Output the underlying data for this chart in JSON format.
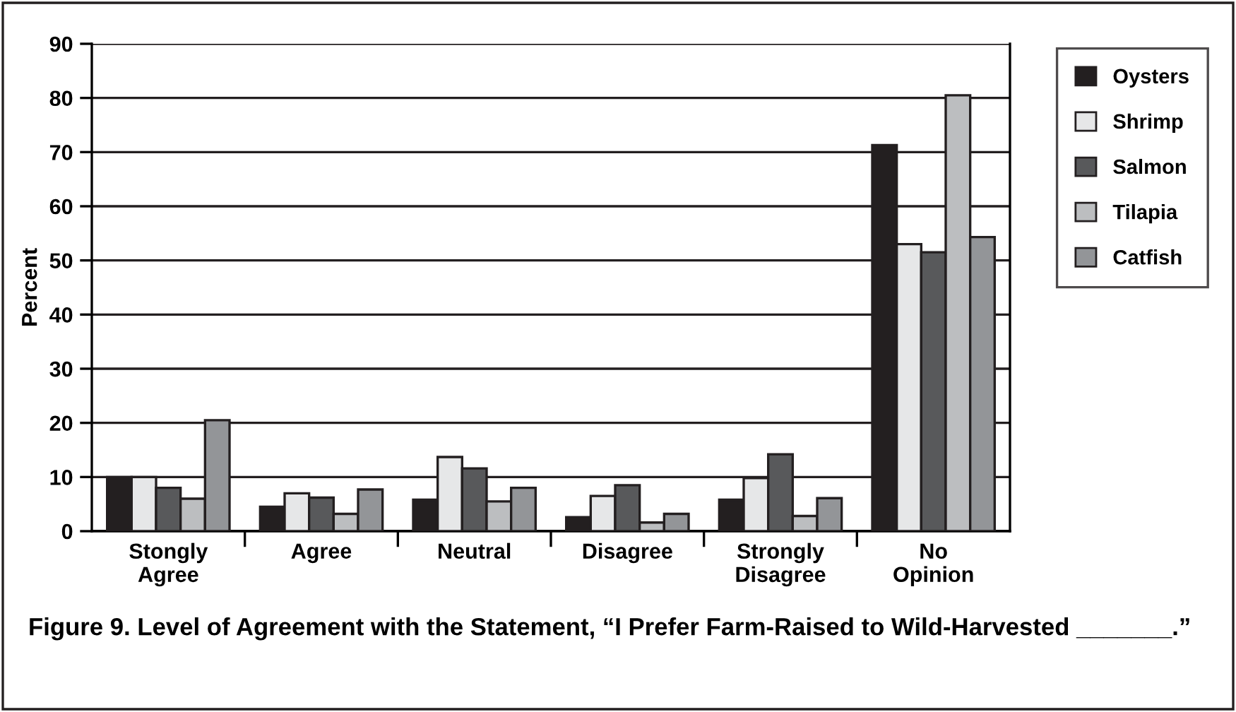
{
  "chart_data": {
    "type": "bar",
    "ylabel": "Percent",
    "categories": [
      "Stongly\nAgree",
      "Agree",
      "Neutral",
      "Disagree",
      "Strongly\nDisagree",
      "No\nOpinion"
    ],
    "series": [
      {
        "name": "Oysters",
        "color": "#231f20",
        "values": [
          10,
          4.5,
          5.8,
          2.6,
          5.8,
          71.3
        ]
      },
      {
        "name": "Shrimp",
        "color": "#e6e7e8",
        "values": [
          10,
          7,
          13.7,
          6.5,
          9.8,
          53
        ]
      },
      {
        "name": "Salmon",
        "color": "#58595b",
        "values": [
          8,
          6.2,
          11.6,
          8.5,
          14.2,
          51.5
        ]
      },
      {
        "name": "Tilapia",
        "color": "#bcbec0",
        "values": [
          6,
          3.2,
          5.5,
          1.6,
          2.8,
          80.5
        ]
      },
      {
        "name": "Catfish",
        "color": "#939598",
        "values": [
          20.5,
          7.7,
          8,
          3.2,
          6.1,
          54.3
        ]
      }
    ],
    "ylim": [
      0,
      90
    ],
    "yticks": [
      0,
      10,
      20,
      30,
      40,
      50,
      60,
      70,
      80,
      90
    ],
    "grid": "y",
    "legend": "right",
    "annotations": [
      "Figure 9. Level of Agreement with the Statement, “I Prefer Farm-Raised to Wild-Harvested _______.”"
    ]
  }
}
